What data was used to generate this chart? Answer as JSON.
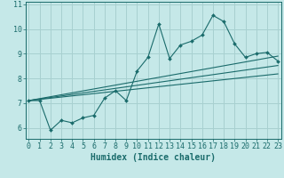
{
  "title": "",
  "xlabel": "Humidex (Indice chaleur)",
  "bg_color": "#c5e8e8",
  "line_color": "#1a6b6b",
  "grid_color": "#a8d0d0",
  "x_data": [
    0,
    1,
    2,
    3,
    4,
    5,
    6,
    7,
    8,
    9,
    10,
    11,
    12,
    13,
    14,
    15,
    16,
    17,
    18,
    19,
    20,
    21,
    22,
    23
  ],
  "line1": [
    7.1,
    7.1,
    5.9,
    6.3,
    6.2,
    6.4,
    6.5,
    7.2,
    7.5,
    7.1,
    8.3,
    8.85,
    10.2,
    8.8,
    9.35,
    9.5,
    9.75,
    10.55,
    10.3,
    9.4,
    8.85,
    9.0,
    9.05,
    8.7
  ],
  "line3_x": [
    0,
    23
  ],
  "line3_y": [
    7.1,
    8.9
  ],
  "line4_x": [
    0,
    23
  ],
  "line4_y": [
    7.1,
    8.52
  ],
  "line5_x": [
    0,
    23
  ],
  "line5_y": [
    7.1,
    8.18
  ],
  "xlim": [
    -0.3,
    23.3
  ],
  "ylim": [
    5.55,
    11.1
  ],
  "yticks": [
    6,
    7,
    8,
    9,
    10,
    11
  ],
  "xticks": [
    0,
    1,
    2,
    3,
    4,
    5,
    6,
    7,
    8,
    9,
    10,
    11,
    12,
    13,
    14,
    15,
    16,
    17,
    18,
    19,
    20,
    21,
    22,
    23
  ],
  "tick_fontsize": 6.0,
  "xlabel_fontsize": 7.0
}
